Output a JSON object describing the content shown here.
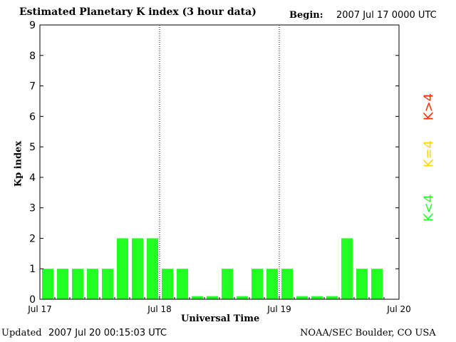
{
  "header": {
    "title": "Estimated Planetary K index (3 hour data)",
    "begin_label": "Begin:",
    "begin_value": "2007 Jul 17 0000 UTC"
  },
  "footer": {
    "updated_label": "Updated",
    "updated_value": "2007 Jul 20 00:15:03 UTC",
    "credit": "NOAA/SEC Boulder, CO USA"
  },
  "legend": {
    "high": {
      "label": "K>4",
      "color": "#ff2a00"
    },
    "equal": {
      "label": "K=4",
      "color": "#ffd700"
    },
    "low": {
      "label": "K<4",
      "color": "#22ff22"
    }
  },
  "chart_data": {
    "type": "bar",
    "xlabel": "Universal Time",
    "ylabel": "Kp index",
    "ylim": [
      0,
      9
    ],
    "yticks": [
      0,
      1,
      2,
      3,
      4,
      5,
      6,
      7,
      8,
      9
    ],
    "xtick_labels": [
      "Jul 17",
      "Jul 18",
      "Jul 19",
      "Jul 20"
    ],
    "day_dividers": [
      "Jul 18",
      "Jul 19"
    ],
    "bar_color": "#22ff22",
    "values": [
      1,
      1,
      1,
      1,
      1,
      2,
      2,
      2,
      1,
      1,
      0,
      0,
      1,
      0,
      1,
      1,
      1,
      0,
      0,
      0,
      2,
      1,
      1
    ]
  }
}
